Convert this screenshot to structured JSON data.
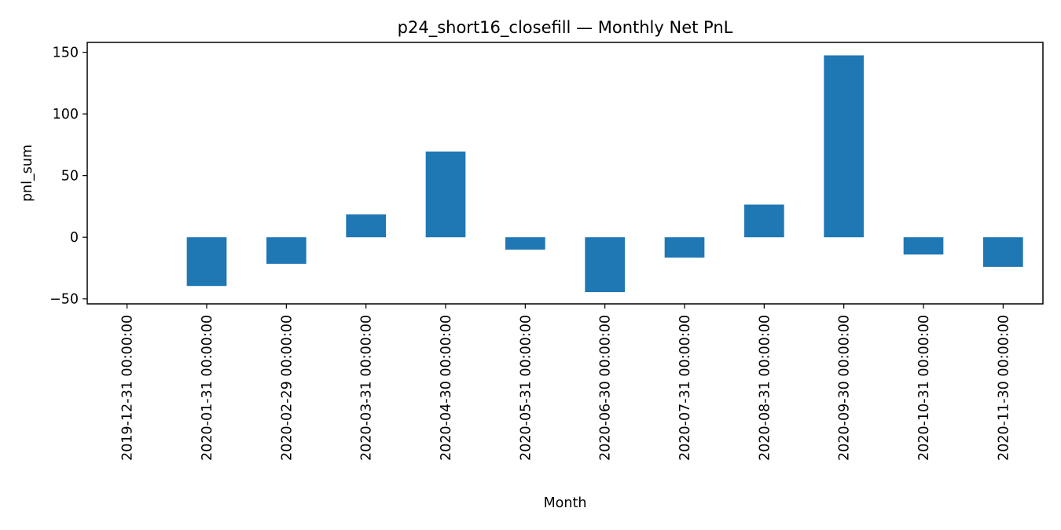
{
  "chart_data": {
    "type": "bar",
    "title": "p24_short16_closefill — Monthly Net PnL",
    "xlabel": "Month",
    "ylabel": "pnl_sum",
    "categories": [
      "2019-12-31 00:00:00",
      "2020-01-31 00:00:00",
      "2020-02-29 00:00:00",
      "2020-03-31 00:00:00",
      "2020-04-30 00:00:00",
      "2020-05-31 00:00:00",
      "2020-06-30 00:00:00",
      "2020-07-31 00:00:00",
      "2020-08-31 00:00:00",
      "2020-09-30 00:00:00",
      "2020-10-31 00:00:00",
      "2020-11-30 00:00:00"
    ],
    "values": [
      0,
      -39.5,
      -21.5,
      18.5,
      69.5,
      -10.0,
      -44.5,
      -16.5,
      26.5,
      147.5,
      -14.0,
      -24.0
    ],
    "ylim": [
      -54,
      158
    ],
    "yticks": [
      -50,
      0,
      50,
      100,
      150
    ],
    "ytick_labels": [
      "−50",
      "0",
      "50",
      "100",
      "150"
    ],
    "bar_color": "#1f77b4",
    "grid": false,
    "legend": "none"
  }
}
